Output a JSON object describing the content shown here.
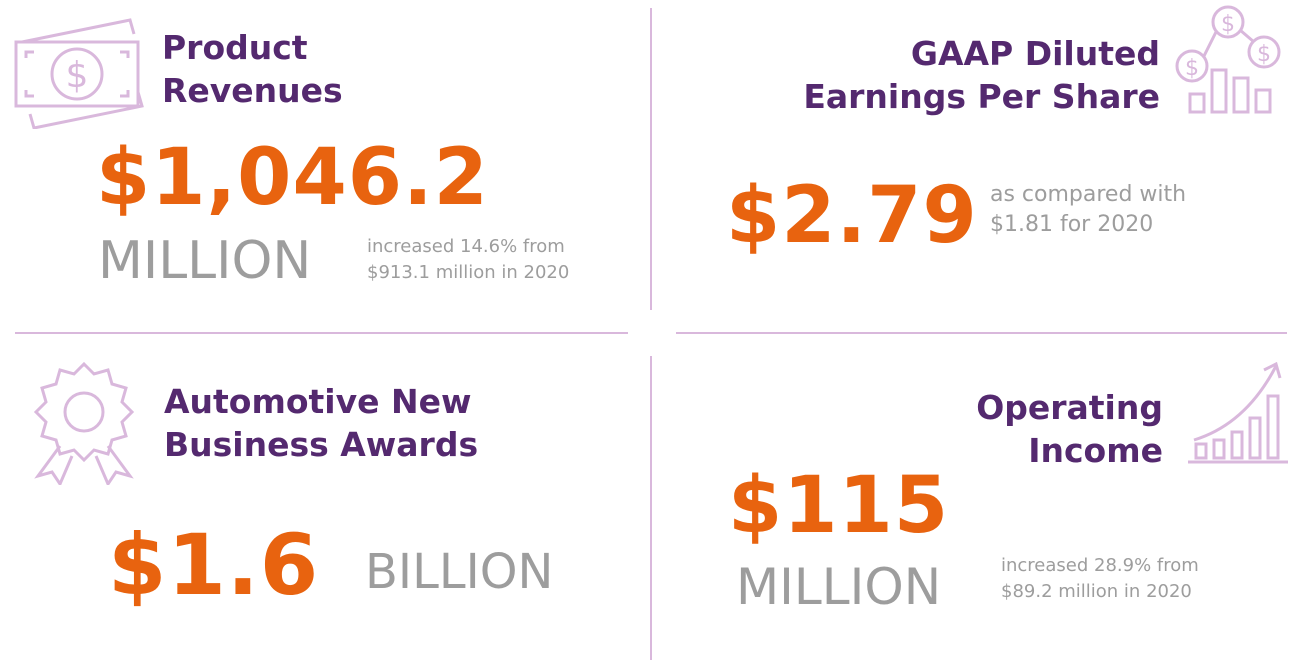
{
  "colors": {
    "title": "#54296f",
    "value": "#e8630f",
    "muted": "#9d9d9d",
    "icon": "#d9b8dc"
  },
  "product_revenues": {
    "title_line1": "Product",
    "title_line2": "Revenues",
    "value": "$1,046.2",
    "unit": "MILLION",
    "note_line1": "increased 14.6% from",
    "note_line2": "$913.1 million in 2020",
    "icon": "money-bill-icon"
  },
  "gaap_eps": {
    "title_line1": "GAAP Diluted",
    "title_line2": "Earnings Per Share",
    "value": "$2.79",
    "note_line1": "as compared with",
    "note_line2": "$1.81 for 2020",
    "icon": "coins-chart-icon"
  },
  "automotive_awards": {
    "title_line1": "Automotive New",
    "title_line2": "Business Awards",
    "value": "$1.6",
    "unit": "BILLION",
    "icon": "award-ribbon-icon"
  },
  "operating_income": {
    "title_line1": "Operating",
    "title_line2": "Income",
    "value": "$115",
    "unit": "MILLION",
    "note_line1": "increased 28.9% from",
    "note_line2": "$89.2 million in 2020",
    "icon": "growth-chart-icon"
  }
}
